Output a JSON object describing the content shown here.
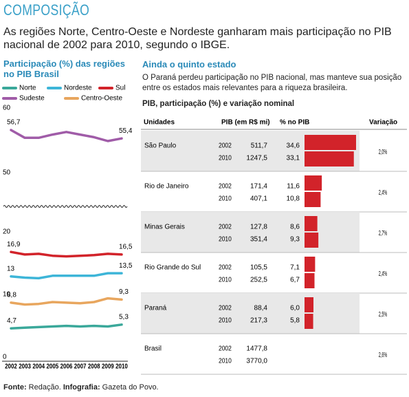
{
  "title": "COMPOSIÇÃO",
  "subtitle": "As regiões Norte, Centro-Oeste e Nordeste ganharam mais participação no PIB nacional de 2002 para 2010, segundo o IBGE.",
  "chart_data": {
    "type": "line",
    "title": "Participação (%) das regiões no PIB Brasil",
    "categories": [
      "2002",
      "2003",
      "2004",
      "2005",
      "2006",
      "2007",
      "2008",
      "2009",
      "2010"
    ],
    "series": [
      {
        "name": "Norte",
        "color": "#3aa89a",
        "values": [
          4.7,
          4.8,
          4.9,
          5.0,
          5.1,
          5.0,
          5.1,
          5.0,
          5.3
        ],
        "value_labels": [
          "4,7",
          null,
          null,
          null,
          null,
          null,
          null,
          null,
          "5,3"
        ]
      },
      {
        "name": "Nordeste",
        "color": "#3db5d8",
        "values": [
          13.0,
          12.8,
          12.7,
          13.1,
          13.1,
          13.1,
          13.1,
          13.5,
          13.5
        ],
        "value_labels": [
          "13",
          null,
          null,
          null,
          null,
          null,
          null,
          null,
          "13,5"
        ]
      },
      {
        "name": "Sul",
        "color": "#d2232a",
        "values": [
          16.9,
          16.5,
          16.6,
          16.3,
          16.2,
          16.3,
          16.4,
          16.6,
          16.5
        ],
        "value_labels": [
          "16,9",
          null,
          null,
          null,
          null,
          null,
          null,
          null,
          "16,5"
        ]
      },
      {
        "name": "Sudeste",
        "color": "#a05ca8",
        "values": [
          56.7,
          55.5,
          55.5,
          56.0,
          56.4,
          56.0,
          55.6,
          55.0,
          55.4
        ],
        "value_labels": [
          "56,7",
          null,
          null,
          null,
          null,
          null,
          null,
          null,
          "55,4"
        ]
      },
      {
        "name": "Centro-Oeste",
        "color": "#e8a65e",
        "values": [
          8.8,
          8.5,
          8.6,
          8.9,
          8.8,
          8.7,
          8.9,
          9.5,
          9.3
        ],
        "value_labels": [
          "8,8",
          null,
          null,
          null,
          null,
          null,
          null,
          null,
          "9,3"
        ]
      }
    ],
    "ylim": [
      0,
      60
    ],
    "axis_break": [
      20,
      50
    ],
    "yticks": [
      0,
      10,
      20,
      50,
      60
    ]
  },
  "table": {
    "title": "Ainda o quinto estado",
    "text": "O Paraná perdeu participação no PIB nacional, mas manteve sua posição entre os estados mais relevantes para a riqueza brasileira.",
    "caption": "PIB, participação (%) e variação nominal",
    "columns": [
      "Unidades",
      "PIB (em R$ mi)",
      "% no PIB",
      "Variação"
    ],
    "rows": [
      {
        "name": "São Paulo",
        "years": [
          "2002",
          "2010"
        ],
        "pib": [
          "511,7",
          "1247,5"
        ],
        "shares": [
          34.6,
          33.1
        ],
        "share_labels": [
          "34,6",
          "33,1"
        ],
        "variation": "2,0%"
      },
      {
        "name": "Rio de Janeiro",
        "years": [
          "2002",
          "2010"
        ],
        "pib": [
          "171,4",
          "407,1"
        ],
        "shares": [
          11.6,
          10.8
        ],
        "share_labels": [
          "11,6",
          "10,8"
        ],
        "variation": "2,4%"
      },
      {
        "name": "Minas Gerais",
        "years": [
          "2002",
          "2010"
        ],
        "pib": [
          "127,8",
          "351,4"
        ],
        "shares": [
          8.6,
          9.3
        ],
        "share_labels": [
          "8,6",
          "9,3"
        ],
        "variation": "2,7%"
      },
      {
        "name": "Rio Grande do Sul",
        "years": [
          "2002",
          "2010"
        ],
        "pib": [
          "105,5",
          "252,5"
        ],
        "shares": [
          7.1,
          6.7
        ],
        "share_labels": [
          "7,1",
          "6,7"
        ],
        "variation": "2,4%"
      },
      {
        "name": "Paraná",
        "years": [
          "2002",
          "2010"
        ],
        "pib": [
          "88,4",
          "217,3"
        ],
        "shares": [
          6.0,
          5.8
        ],
        "share_labels": [
          "6,0",
          "5,8"
        ],
        "variation": "2,5%"
      },
      {
        "name": "Brasil",
        "years": [
          "2002",
          "2010"
        ],
        "pib": [
          "1477,8",
          "3770,0"
        ],
        "variation": "2,6%"
      }
    ],
    "bar_color": "#d2232a"
  },
  "source": {
    "label1": "Fonte:",
    "text1": "Redação.",
    "label2": "Infografia:",
    "text2": "Gazeta do Povo."
  }
}
